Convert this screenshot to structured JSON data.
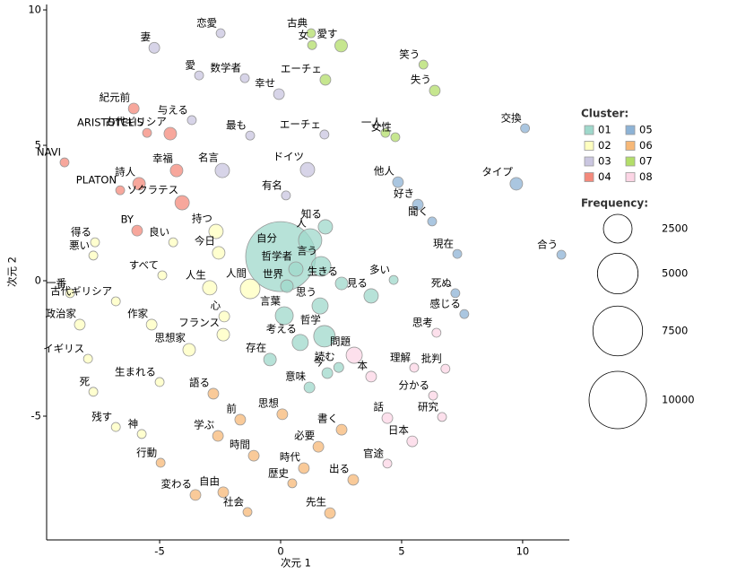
{
  "chart_data": {
    "type": "scatter",
    "xlabel": "次元 1",
    "ylabel": "次元 2",
    "xlim": [
      -9.67,
      11.93
    ],
    "ylim": [
      -9.57,
      10.2
    ],
    "xticks": [
      -5,
      0,
      5,
      10
    ],
    "yticks": [
      -5,
      0,
      5,
      10
    ],
    "legend_title": "Cluster:",
    "size_legend": {
      "title": "Frequency:",
      "values": [
        2500,
        5000,
        7500,
        10000
      ]
    },
    "series": [
      {
        "name": "01",
        "color": "#9fd8cb",
        "labels": [
          "自分",
          "人",
          "知る",
          "哲学者",
          "言う",
          "世界",
          "生きる",
          "多い",
          "見る",
          "言葉",
          "思う",
          "哲学",
          "考える",
          "存在",
          "今",
          "読む",
          "意味"
        ],
        "x": [
          0,
          1.22,
          1.85,
          0.63,
          1.67,
          0.26,
          2.52,
          4.67,
          3.74,
          0.15,
          1.63,
          1.81,
          0.81,
          -0.44,
          1.93,
          2.4,
          1.19
        ],
        "values": [
          0.89,
          1.49,
          1.99,
          0.43,
          0.53,
          -0.2,
          -0.1,
          0.03,
          -0.56,
          -1.29,
          -0.93,
          -2.05,
          -2.28,
          -2.91,
          -3.41,
          -3.2,
          -3.94
        ],
        "sizes": [
          14850,
          1650,
          625,
          625,
          1180,
          480,
          480,
          244,
          625,
          977,
          790,
          1400,
          790,
          480,
          350,
          300,
          350
        ]
      },
      {
        "name": "02",
        "color": "#ffffbf",
        "labels": [
          "得る",
          "悪い",
          "良い",
          "すべて",
          "持つ",
          "今日",
          "人生",
          "人間",
          "一番",
          "古代ギリシア",
          "作家",
          "政治家",
          "心",
          "フランス",
          "思想家",
          "イギリス",
          "生まれる",
          "死",
          "残す",
          "神"
        ],
        "x": [
          -7.67,
          -7.74,
          -4.44,
          -4.89,
          -2.67,
          -2.56,
          -2.93,
          -1.26,
          -8.7,
          -6.81,
          -5.33,
          -8.3,
          -2.33,
          -2.37,
          -3.78,
          -7.96,
          -5,
          -7.74,
          -6.81,
          -5.74
        ],
        "values": [
          1.42,
          0.93,
          1.42,
          0.2,
          1.82,
          1.03,
          -0.26,
          -0.3,
          -0.46,
          -0.76,
          -1.62,
          -1.62,
          -1.32,
          -1.99,
          -2.55,
          -2.88,
          -3.74,
          -4.1,
          -5.4,
          -5.66
        ],
        "sizes": [
          244,
          244,
          244,
          244,
          625,
          480,
          625,
          1180,
          244,
          244,
          350,
          350,
          350,
          480,
          480,
          244,
          244,
          244,
          244,
          244
        ]
      },
      {
        "name": "03",
        "color": "#cac6e0",
        "labels": [
          "恋愛",
          "妻",
          "愛",
          "数学者",
          "幸せ",
          "与える",
          "最も",
          "エーチェ",
          "名言",
          "ドイツ",
          "有名"
        ],
        "x": [
          -2.48,
          -5.22,
          -3.37,
          -1.48,
          -0.07,
          -3.67,
          -1.26,
          1.81,
          -2.41,
          1.11,
          0.22
        ],
        "values": [
          9.14,
          8.6,
          7.58,
          7.48,
          6.89,
          5.93,
          5.36,
          5.4,
          4.07,
          4.1,
          3.15
        ],
        "sizes": [
          244,
          350,
          244,
          244,
          350,
          244,
          244,
          244,
          625,
          625,
          244
        ]
      },
      {
        "name": "04",
        "color": "#f4897b",
        "labels": [
          "紀元前",
          "ARISTOTELIS",
          "古代ギリシア",
          "NAVI",
          "幸福",
          "詩人",
          "PLATON",
          "ソクラテス",
          "BY"
        ],
        "x": [
          -6.07,
          -5.52,
          -4.56,
          -8.93,
          -4.3,
          -5.85,
          -6.63,
          -4.07,
          -5.93
        ],
        "values": [
          6.36,
          5.46,
          5.43,
          4.37,
          4.07,
          3.58,
          3.34,
          2.88,
          1.85
        ],
        "sizes": [
          350,
          244,
          480,
          244,
          480,
          480,
          244,
          625,
          350
        ]
      },
      {
        "name": "05",
        "color": "#8db3d6",
        "labels": [
          "交換",
          "タイプ",
          "他人",
          "好き",
          "聞く",
          "現在",
          "合う",
          "死ぬ",
          "感じる"
        ],
        "x": [
          10.1,
          9.74,
          4.85,
          5.67,
          6.26,
          7.3,
          11.6,
          7.22,
          7.59
        ],
        "values": [
          5.63,
          3.58,
          3.64,
          2.81,
          2.19,
          0.99,
          0.96,
          -0.46,
          -1.23
        ],
        "sizes": [
          244,
          480,
          350,
          350,
          244,
          244,
          244,
          244,
          244
        ]
      },
      {
        "name": "06",
        "color": "#f7b877",
        "labels": [
          "語る",
          "前",
          "学ぶ",
          "思想",
          "書く",
          "必要",
          "行動",
          "時間",
          "時代",
          "出る",
          "歴史",
          "変わる",
          "自由",
          "社会",
          "先生"
        ],
        "x": [
          -2.78,
          -1.67,
          -2.59,
          0.07,
          2.52,
          1.56,
          -4.96,
          -1.11,
          0.96,
          3,
          0.48,
          -3.52,
          -2.37,
          -1.37,
          2.04
        ],
        "values": [
          -4.17,
          -5.13,
          -5.73,
          -4.93,
          -5.5,
          -6.13,
          -6.72,
          -6.46,
          -6.92,
          -7.35,
          -7.48,
          -7.91,
          -7.81,
          -8.54,
          -8.58
        ],
        "sizes": [
          350,
          350,
          350,
          350,
          350,
          350,
          244,
          350,
          350,
          350,
          244,
          350,
          350,
          244,
          350
        ]
      },
      {
        "name": "07",
        "color": "#b3de69",
        "labels": [
          "古典",
          "女",
          "愛す",
          "笑う",
          "失う",
          "エーチェ",
          "一人",
          "女性"
        ],
        "x": [
          1.26,
          1.3,
          2.5,
          5.9,
          6.37,
          1.85,
          4.33,
          4.74
        ],
        "values": [
          9.14,
          8.7,
          8.68,
          7.98,
          7.02,
          7.42,
          5.46,
          5.3
        ],
        "sizes": [
          244,
          244,
          480,
          244,
          350,
          350,
          244,
          244
        ]
      },
      {
        "name": "08",
        "color": "#fcd5e5",
        "labels": [
          "問題",
          "本",
          "思考",
          "理解",
          "批判",
          "分かる",
          "研究",
          "話",
          "日本",
          "官途"
        ],
        "x": [
          3.04,
          3.74,
          6.44,
          5.52,
          6.81,
          6.3,
          6.67,
          4.41,
          5.44,
          4.41
        ],
        "values": [
          -2.75,
          -3.54,
          -1.92,
          -3.21,
          -3.25,
          -4.24,
          -5.03,
          -5.07,
          -5.93,
          -6.75
        ],
        "sizes": [
          790,
          350,
          244,
          244,
          244,
          244,
          244,
          350,
          350,
          244
        ]
      }
    ]
  }
}
